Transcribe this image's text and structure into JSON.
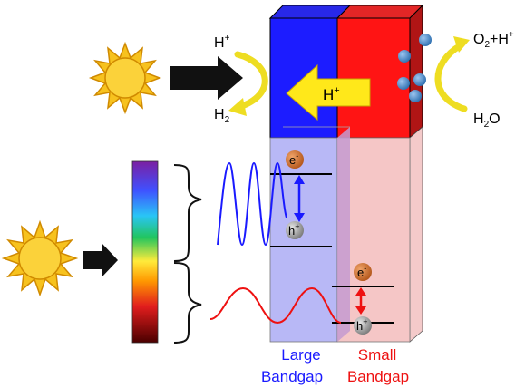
{
  "labels": {
    "h_plus_top": "H",
    "h_plus_top_sup": "+",
    "h2": "H",
    "h2_sub": "2",
    "membrane_h": "H",
    "membrane_h_sup": "+",
    "o2_left": "O",
    "o2_sub": "2",
    "o2_rest": "+H",
    "o2_sup": "+",
    "h2o_h": "H",
    "h2o_sub": "2",
    "h2o_o": "O",
    "electron_large": "e",
    "electron_large_sup": "-",
    "hole_large": "h",
    "hole_large_sup": "+",
    "electron_small": "e",
    "electron_small_sup": "-",
    "hole_small": "h",
    "hole_small_sup": "+",
    "large_line1": "Large",
    "large_line2": "Bandgap",
    "small_line1": "Small",
    "small_line2": "Bandgap"
  },
  "colors": {
    "large_bandgap": "#1a1aff",
    "small_bandgap": "#ee1111",
    "arrow_yellow": "#ffe81a",
    "sun": "#f7c21e",
    "electron": "#c8651e",
    "hole": "#8c8c8c"
  },
  "icons": [
    "sun-icon",
    "arrow-right-icon",
    "spectrum-bar",
    "curved-arrow-icon",
    "brace-icon",
    "sine-wave"
  ]
}
